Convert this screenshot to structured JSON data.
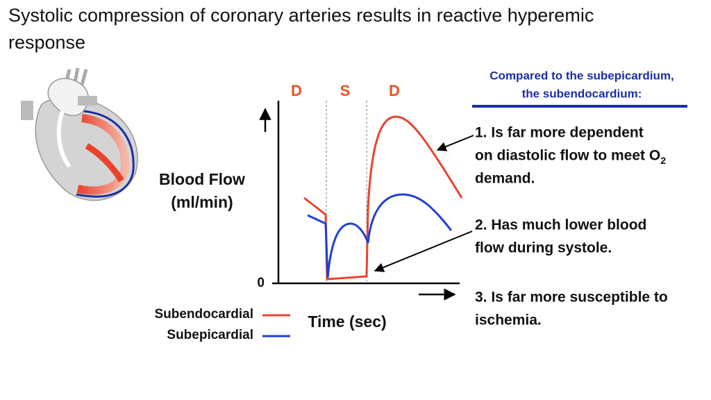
{
  "title": [
    "Systolic compression of coronary arteries results in reactive hyperemic",
    "response"
  ],
  "graph": {
    "phases": [
      "D",
      "S",
      "D"
    ],
    "phase_color": "#e8501f",
    "y_label": [
      "Blood Flow",
      "(ml/min)"
    ],
    "y_zero": "0",
    "x_label": "Time (sec)",
    "legend": [
      {
        "name": "Subendocardial",
        "color": "#e8432d"
      },
      {
        "name": "Subepicardial",
        "color": "#1f3fd6"
      }
    ]
  },
  "panel": {
    "heading": [
      "Compared to the subepicardium,",
      "the subendocardium:"
    ],
    "points": [
      {
        "lines": [
          "1.  Is far more dependent",
          "on diastolic flow to meet O",
          "demand."
        ],
        "subscript": "2"
      },
      {
        "lines": [
          "2.  Has much lower blood",
          "flow during systole."
        ]
      },
      {
        "lines": [
          "3. Is far more susceptible to",
          "ischemia."
        ]
      }
    ]
  }
}
